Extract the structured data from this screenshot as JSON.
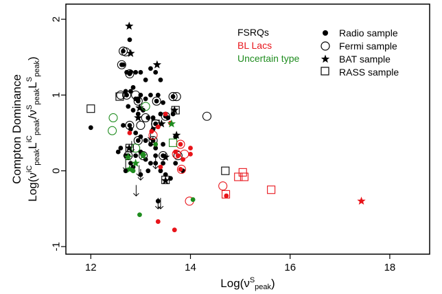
{
  "chart_data": {
    "type": "scatter",
    "title": "",
    "xlabel_base": "Log(ν",
    "xlabel_sup": "S",
    "xlabel_sub": "peak",
    "xlabel_end": ")",
    "ylabel_line1": "Compton Dominance",
    "ylabel_line2_parts": [
      "Log(ν",
      "iC",
      "peak",
      "L",
      "iC",
      "peak",
      "/ν",
      "S",
      "peak",
      "L",
      "S",
      "peak",
      ")"
    ],
    "xlim": [
      11.5,
      18.8
    ],
    "ylim": [
      -1.1,
      2.2
    ],
    "xticks": [
      12,
      14,
      16,
      18
    ],
    "xtick_labels": [
      "12",
      "14",
      "16",
      "18"
    ],
    "yticks": [
      -1,
      0,
      1,
      2
    ],
    "ytick_labels": [
      "-1",
      "0",
      "1",
      "2"
    ],
    "grid": false,
    "classes": [
      {
        "name": "FSRQs",
        "color": "#000000"
      },
      {
        "name": "BL Lacs",
        "color": "#e8141a"
      },
      {
        "name": "Uncertain type",
        "color": "#1e8c1e"
      }
    ],
    "legend_samples": [
      {
        "name": "Radio sample",
        "marker": "dot"
      },
      {
        "name": "Fermi sample",
        "marker": "circle"
      },
      {
        "name": "BAT sample",
        "marker": "star"
      },
      {
        "name": "RASS sample",
        "marker": "square"
      }
    ],
    "legend_position": "top-right",
    "series": [
      {
        "class": "FSRQ",
        "marker": "dot",
        "points": [
          [
            12.0,
            0.57
          ],
          [
            12.78,
            1.73
          ],
          [
            12.65,
            1.4
          ],
          [
            12.72,
            1.3
          ],
          [
            12.8,
            1.3
          ],
          [
            12.85,
            1.1
          ],
          [
            12.9,
            1.3
          ],
          [
            13.0,
            1.3
          ],
          [
            13.1,
            1.2
          ],
          [
            13.2,
            1.35
          ],
          [
            13.3,
            1.3
          ],
          [
            13.4,
            1.2
          ],
          [
            12.7,
            1.05
          ],
          [
            12.8,
            1.05
          ],
          [
            12.9,
            0.95
          ],
          [
            13.0,
            1.0
          ],
          [
            13.1,
            0.95
          ],
          [
            13.2,
            1.0
          ],
          [
            13.35,
            1.0
          ],
          [
            13.45,
            0.9
          ],
          [
            12.75,
            0.85
          ],
          [
            12.85,
            0.8
          ],
          [
            12.95,
            0.75
          ],
          [
            13.05,
            0.8
          ],
          [
            13.15,
            0.7
          ],
          [
            13.25,
            0.7
          ],
          [
            13.4,
            0.75
          ],
          [
            13.55,
            0.7
          ],
          [
            13.65,
            0.75
          ],
          [
            12.65,
            0.6
          ],
          [
            12.8,
            0.55
          ],
          [
            12.9,
            0.5
          ],
          [
            13.0,
            0.45
          ],
          [
            13.1,
            0.4
          ],
          [
            13.2,
            0.35
          ],
          [
            13.3,
            0.3
          ],
          [
            13.45,
            0.35
          ],
          [
            12.6,
            0.3
          ],
          [
            12.7,
            0.2
          ],
          [
            12.8,
            0.1
          ],
          [
            12.9,
            0.2
          ],
          [
            13.0,
            0.25
          ],
          [
            13.1,
            0.15
          ],
          [
            13.2,
            0.1
          ],
          [
            13.3,
            0.2
          ],
          [
            13.4,
            0.0
          ],
          [
            13.5,
            -0.05
          ],
          [
            13.6,
            -0.1
          ],
          [
            12.55,
            0.25
          ],
          [
            12.7,
            0.0
          ],
          [
            12.85,
            0.05
          ],
          [
            13.0,
            -0.05
          ],
          [
            13.15,
            0.0
          ],
          [
            13.3,
            0.1
          ],
          [
            13.45,
            0.1
          ],
          [
            13.7,
            0.1
          ],
          [
            13.85,
            0.0
          ],
          [
            13.1,
            0.4
          ],
          [
            13.7,
            0.45
          ],
          [
            13.35,
            -0.4
          ],
          [
            12.95,
            0.95
          ],
          [
            13.25,
            0.55
          ]
        ]
      },
      {
        "class": "FSRQ",
        "marker": "dot-ring",
        "points": [
          [
            12.65,
            1.58
          ],
          [
            12.62,
            1.4
          ],
          [
            12.78,
            1.28
          ],
          [
            12.72,
            1.0
          ],
          [
            12.95,
            0.92
          ],
          [
            13.32,
            0.92
          ],
          [
            12.78,
            0.6
          ],
          [
            12.95,
            0.4
          ],
          [
            13.25,
            0.4
          ],
          [
            13.5,
            0.72
          ],
          [
            12.75,
            0.2
          ],
          [
            13.05,
            0.2
          ],
          [
            13.45,
            0.2
          ],
          [
            13.75,
            0.2
          ],
          [
            13.3,
            0.62
          ],
          [
            13.65,
            0.98
          ]
        ]
      },
      {
        "class": "FSRQ",
        "marker": "circle",
        "points": [
          [
            12.7,
            1.57
          ],
          [
            12.6,
            1.0
          ],
          [
            13.1,
            0.7
          ],
          [
            13.72,
            0.98
          ],
          [
            14.33,
            0.72
          ],
          [
            13.0,
            0.6
          ],
          [
            12.9,
            1.0
          ]
        ]
      },
      {
        "class": "FSRQ",
        "marker": "star",
        "points": [
          [
            12.77,
            1.91
          ],
          [
            12.8,
            1.55
          ],
          [
            13.33,
            1.4
          ],
          [
            12.98,
            0.83
          ],
          [
            13.68,
            0.8
          ],
          [
            12.77,
            0.3
          ],
          [
            13.72,
            0.47
          ],
          [
            13.42,
            0.62
          ],
          [
            13.5,
            0.18
          ],
          [
            13.5,
            -0.13
          ],
          [
            12.95,
            0.7
          ]
        ]
      },
      {
        "class": "FSRQ",
        "marker": "square",
        "points": [
          [
            12.0,
            0.82
          ],
          [
            12.58,
            0.98
          ],
          [
            13.7,
            0.8
          ],
          [
            14.7,
            0.0
          ],
          [
            13.5,
            -0.12
          ],
          [
            12.78,
            0.3
          ],
          [
            13.3,
            0.62
          ]
        ]
      },
      {
        "class": "FSRQ",
        "marker": "arrow-down",
        "points": [
          [
            12.82,
            0.32
          ],
          [
            12.97,
            0.0
          ],
          [
            12.91,
            -0.26
          ],
          [
            13.35,
            -0.43
          ],
          [
            13.4,
            -0.43
          ],
          [
            13.2,
            0.48
          ],
          [
            13.3,
            0.1
          ],
          [
            12.7,
            0.08
          ],
          [
            13.0,
            -0.05
          ]
        ]
      },
      {
        "class": "BL Lac",
        "marker": "dot",
        "points": [
          [
            12.78,
            0.5
          ],
          [
            13.22,
            0.52
          ],
          [
            13.35,
            0.58
          ],
          [
            13.6,
            0.63
          ],
          [
            13.5,
            0.75
          ],
          [
            13.8,
            0.35
          ],
          [
            13.75,
            0.2
          ],
          [
            13.85,
            0.15
          ],
          [
            13.8,
            0.02
          ],
          [
            14.0,
            0.3
          ],
          [
            14.0,
            0.22
          ],
          [
            14.72,
            -0.33
          ],
          [
            13.35,
            -0.67
          ],
          [
            13.68,
            -0.78
          ],
          [
            13.3,
            0.35
          ],
          [
            13.7,
            0.25
          ],
          [
            13.4,
            0.05
          ]
        ]
      },
      {
        "class": "BL Lac",
        "marker": "circle",
        "points": [
          [
            13.8,
            0.35
          ],
          [
            13.72,
            0.22
          ],
          [
            13.88,
            0.22
          ],
          [
            13.82,
            0.02
          ],
          [
            13.98,
            -0.4
          ],
          [
            14.65,
            -0.2
          ],
          [
            13.25,
            0.47
          ]
        ]
      },
      {
        "class": "BL Lac",
        "marker": "square",
        "points": [
          [
            14.96,
            -0.08
          ],
          [
            15.05,
            -0.02
          ],
          [
            15.08,
            -0.08
          ],
          [
            14.71,
            -0.31
          ],
          [
            15.62,
            -0.25
          ]
        ]
      },
      {
        "class": "BL Lac",
        "marker": "star",
        "points": [
          [
            17.43,
            -0.4
          ]
        ]
      },
      {
        "class": "Uncertain type",
        "marker": "dot",
        "points": [
          [
            12.85,
            0.0
          ],
          [
            13.05,
            0.22
          ],
          [
            12.98,
            -0.58
          ],
          [
            14.05,
            -0.38
          ],
          [
            13.3,
            0.35
          ]
        ]
      },
      {
        "class": "Uncertain type",
        "marker": "circle",
        "points": [
          [
            12.43,
            0.53
          ],
          [
            12.45,
            0.7
          ],
          [
            13.1,
            0.85
          ],
          [
            12.9,
            0.3
          ]
        ]
      },
      {
        "class": "Uncertain type",
        "marker": "star",
        "points": [
          [
            13.62,
            0.62
          ],
          [
            12.78,
            0.02
          ],
          [
            12.9,
            0.1
          ],
          [
            13.05,
            0.2
          ],
          [
            12.75,
            0.18
          ]
        ]
      },
      {
        "class": "Uncertain type",
        "marker": "square",
        "points": [
          [
            13.65,
            0.37
          ]
        ]
      }
    ]
  }
}
